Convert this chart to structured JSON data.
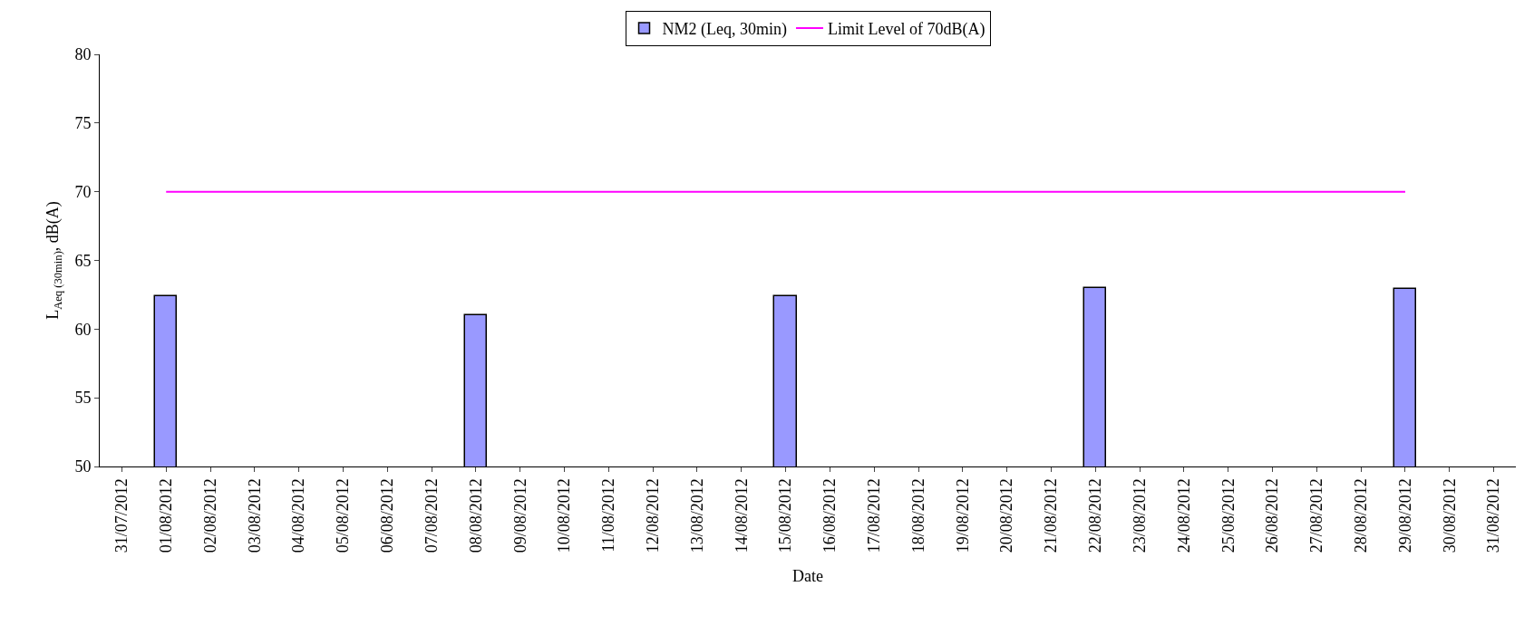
{
  "chart_data": {
    "type": "bar",
    "xlabel": "Date",
    "ylabel": "L$_{Aeq (30min)}$, dB(A)",
    "categories": [
      "31/07/2012",
      "01/08/2012",
      "02/08/2012",
      "03/08/2012",
      "04/08/2012",
      "05/08/2012",
      "06/08/2012",
      "07/08/2012",
      "08/08/2012",
      "09/08/2012",
      "10/08/2012",
      "11/08/2012",
      "12/08/2012",
      "13/08/2012",
      "14/08/2012",
      "15/08/2012",
      "16/08/2012",
      "17/08/2012",
      "18/08/2012",
      "19/08/2012",
      "20/08/2012",
      "21/08/2012",
      "22/08/2012",
      "23/08/2012",
      "24/08/2012",
      "25/08/2012",
      "26/08/2012",
      "27/08/2012",
      "28/08/2012",
      "29/08/2012",
      "30/08/2012",
      "31/08/2012"
    ],
    "series": [
      {
        "name": "NM2 (Leq, 30min)",
        "color": "#9999ff",
        "values": [
          null,
          62.4,
          null,
          null,
          null,
          null,
          null,
          null,
          61.0,
          null,
          null,
          null,
          null,
          null,
          null,
          62.4,
          null,
          null,
          null,
          null,
          null,
          null,
          63.0,
          null,
          null,
          null,
          null,
          null,
          null,
          62.9,
          null,
          null
        ]
      },
      {
        "name": "Limit Level of 70dB(A)",
        "type": "line",
        "color": "#ff00ff",
        "values": [
          null,
          70,
          70,
          70,
          70,
          70,
          70,
          70,
          70,
          70,
          70,
          70,
          70,
          70,
          70,
          70,
          70,
          70,
          70,
          70,
          70,
          70,
          70,
          70,
          70,
          70,
          70,
          70,
          70,
          70,
          null,
          null
        ]
      }
    ],
    "ylim": [
      50,
      80
    ],
    "yticks": [
      50,
      55,
      60,
      65,
      70,
      75,
      80
    ],
    "grid": false,
    "legend": "top"
  }
}
